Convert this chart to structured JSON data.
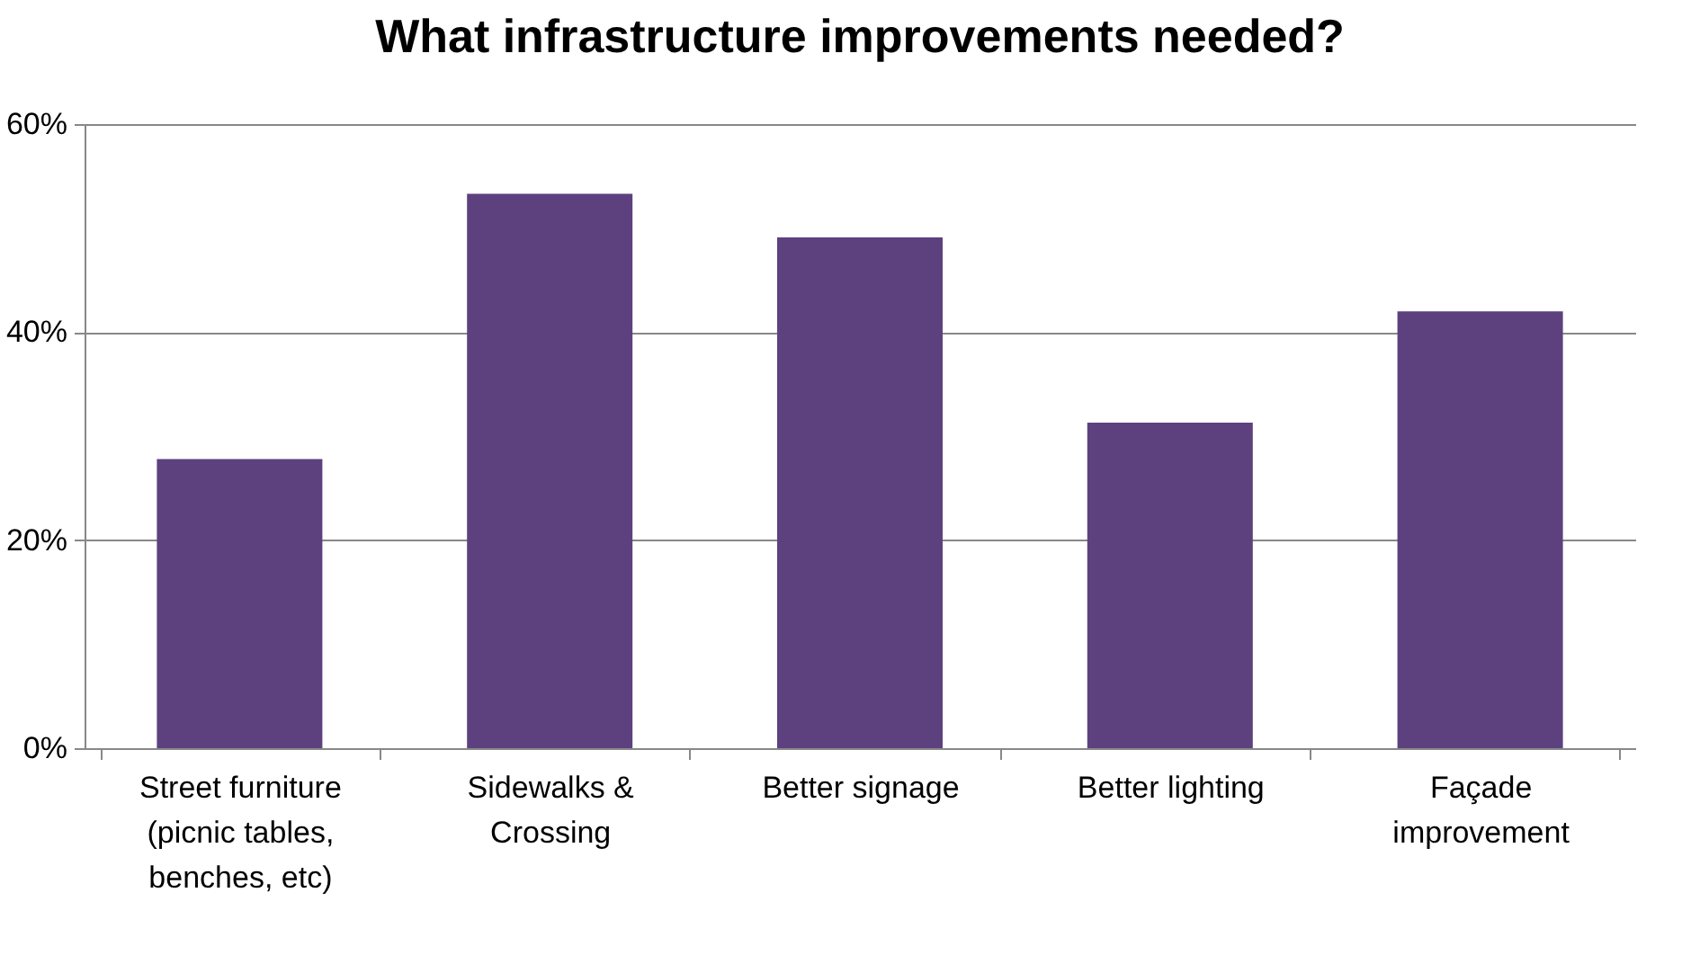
{
  "chart_data": {
    "type": "bar",
    "title": "What infrastructure improvements needed?",
    "categories": [
      "Street furniture (picnic tables, benches, etc)",
      "Sidewalks & Crossing",
      "Better signage",
      "Better lighting",
      "Façade improvement"
    ],
    "values": [
      27.8,
      53.3,
      49.1,
      31.3,
      42.0
    ],
    "color": "#5d417f",
    "ylim": [
      0,
      60
    ],
    "yticks": [
      {
        "value": 0,
        "label": "0%"
      },
      {
        "value": 20,
        "label": "20%"
      },
      {
        "value": 40,
        "label": "40%"
      },
      {
        "value": 60,
        "label": "60%"
      }
    ],
    "grid": "y"
  }
}
